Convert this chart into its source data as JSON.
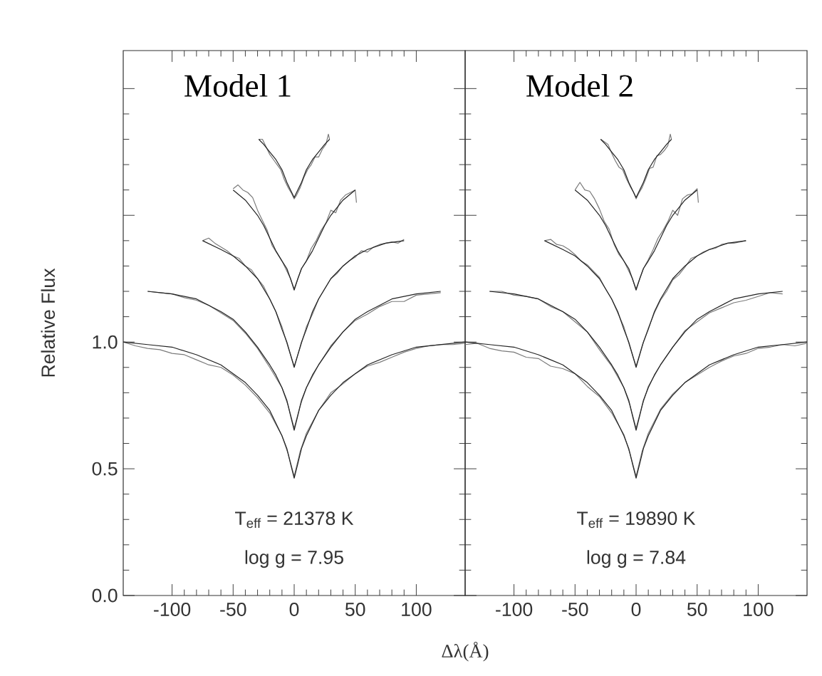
{
  "chart_data": [
    {
      "type": "line",
      "ylabel": "Relative Flux",
      "xlabel": "Δλ(Å)",
      "xlim": [
        -140,
        140
      ],
      "ylim": [
        0,
        2.15
      ],
      "xticks": [
        -100,
        -50,
        0,
        50,
        100
      ],
      "yticks": [
        {
          "value": 0,
          "label": "0.0"
        },
        0.5,
        {
          "value": 1,
          "label": "1.0"
        },
        {
          "value": 1.5,
          "label": null
        },
        {
          "value": 2,
          "label": null
        }
      ],
      "annotations": [
        "Model 1",
        "T$_{eff}$ = 21378 K",
        "log g = 7.95"
      ],
      "series": [
        {
          "color": "#7a7a7a",
          "x": [
            -140,
            -130,
            -120,
            -110,
            -100,
            -90,
            -80,
            -70,
            -60,
            -50,
            -40,
            -30,
            -20,
            -10,
            -5,
            0,
            5,
            10,
            20,
            30,
            40,
            50,
            60,
            70,
            80,
            90,
            100,
            110,
            120,
            130,
            140
          ],
          "values": [
            1.0,
            0.985,
            0.975,
            0.97,
            0.955,
            0.95,
            0.93,
            0.91,
            0.9,
            0.87,
            0.83,
            0.78,
            0.72,
            0.63,
            0.56,
            0.47,
            0.57,
            0.64,
            0.73,
            0.8,
            0.835,
            0.875,
            0.905,
            0.92,
            0.94,
            0.96,
            0.975,
            0.985,
            0.99,
            0.99,
            0.995
          ]
        },
        {
          "color": "#7a7a7a",
          "x": [
            -120,
            -110,
            -100,
            -90,
            -80,
            -70,
            -60,
            -50,
            -40,
            -30,
            -20,
            -10,
            -5,
            0,
            5,
            10,
            20,
            30,
            40,
            50,
            60,
            70,
            80,
            90,
            100,
            110,
            120
          ],
          "values": [
            1.2,
            1.195,
            1.19,
            1.175,
            1.165,
            1.145,
            1.115,
            1.085,
            1.035,
            0.975,
            0.9,
            0.82,
            0.75,
            0.66,
            0.75,
            0.82,
            0.91,
            0.985,
            1.04,
            1.085,
            1.11,
            1.14,
            1.16,
            1.16,
            1.185,
            1.19,
            1.195
          ]
        },
        {
          "color": "#7a7a7a",
          "x": [
            -75,
            -70,
            -65,
            -60,
            -55,
            -50,
            -45,
            -40,
            -35,
            -30,
            -25,
            -20,
            -15,
            -10,
            -5,
            0,
            5,
            10,
            15,
            20,
            25,
            30,
            35,
            40,
            45,
            50,
            55,
            60,
            65,
            70,
            75,
            80,
            85,
            90
          ],
          "values": [
            1.4,
            1.41,
            1.39,
            1.375,
            1.36,
            1.34,
            1.33,
            1.3,
            1.285,
            1.25,
            1.22,
            1.17,
            1.12,
            1.06,
            0.98,
            0.905,
            0.98,
            1.06,
            1.11,
            1.17,
            1.21,
            1.25,
            1.27,
            1.3,
            1.32,
            1.335,
            1.36,
            1.355,
            1.375,
            1.385,
            1.39,
            1.395,
            1.39,
            1.405
          ]
        },
        {
          "color": "#7a7a7a",
          "x": [
            -50,
            -46,
            -42,
            -38,
            -34,
            -30,
            -26,
            -22,
            -18,
            -14,
            -10,
            -6,
            -3,
            0,
            3,
            6,
            10,
            14,
            18,
            22,
            26,
            30,
            34,
            38,
            42,
            46,
            50,
            51
          ],
          "values": [
            1.605,
            1.62,
            1.6,
            1.59,
            1.57,
            1.52,
            1.48,
            1.44,
            1.38,
            1.35,
            1.32,
            1.28,
            1.25,
            1.21,
            1.25,
            1.29,
            1.32,
            1.37,
            1.4,
            1.44,
            1.47,
            1.52,
            1.51,
            1.56,
            1.58,
            1.59,
            1.6,
            1.55
          ]
        },
        {
          "color": "#7a7a7a",
          "x": [
            -29,
            -26,
            -23,
            -20,
            -17,
            -14,
            -11,
            -8,
            -5,
            -2,
            0,
            2,
            5,
            8,
            11,
            14,
            17,
            20,
            23,
            26,
            28,
            29
          ],
          "values": [
            1.8,
            1.8,
            1.77,
            1.74,
            1.72,
            1.7,
            1.68,
            1.64,
            1.61,
            1.585,
            1.565,
            1.58,
            1.61,
            1.65,
            1.68,
            1.7,
            1.73,
            1.73,
            1.76,
            1.78,
            1.82,
            1.8
          ]
        },
        {
          "color": "#222222",
          "x": [
            -140,
            -120,
            -100,
            -80,
            -60,
            -40,
            -30,
            -20,
            -15,
            -10,
            -6,
            -3,
            0,
            3,
            6,
            10,
            15,
            20,
            30,
            40,
            60,
            80,
            100,
            120,
            140
          ],
          "values": [
            1.0,
            0.99,
            0.98,
            0.95,
            0.91,
            0.84,
            0.79,
            0.73,
            0.68,
            0.63,
            0.58,
            0.52,
            0.463,
            0.52,
            0.58,
            0.63,
            0.68,
            0.73,
            0.79,
            0.84,
            0.91,
            0.95,
            0.98,
            0.99,
            1.0
          ]
        },
        {
          "color": "#222222",
          "x": [
            -120,
            -100,
            -80,
            -60,
            -50,
            -40,
            -30,
            -20,
            -15,
            -10,
            -6,
            -3,
            0,
            3,
            6,
            10,
            15,
            20,
            30,
            40,
            50,
            60,
            80,
            100,
            120
          ],
          "values": [
            1.2,
            1.19,
            1.17,
            1.12,
            1.09,
            1.04,
            0.98,
            0.91,
            0.87,
            0.82,
            0.77,
            0.71,
            0.652,
            0.71,
            0.77,
            0.82,
            0.87,
            0.91,
            0.98,
            1.04,
            1.09,
            1.12,
            1.17,
            1.19,
            1.2
          ]
        },
        {
          "color": "#222222",
          "x": [
            -75,
            -60,
            -50,
            -40,
            -30,
            -20,
            -15,
            -10,
            -6,
            -3,
            0,
            3,
            6,
            10,
            15,
            20,
            30,
            40,
            50,
            60,
            75,
            90
          ],
          "values": [
            1.4,
            1.365,
            1.34,
            1.3,
            1.25,
            1.17,
            1.12,
            1.05,
            1.0,
            0.95,
            0.9,
            0.95,
            1.0,
            1.05,
            1.12,
            1.17,
            1.25,
            1.3,
            1.34,
            1.365,
            1.39,
            1.4
          ]
        },
        {
          "color": "#222222",
          "x": [
            -50,
            -40,
            -30,
            -25,
            -20,
            -15,
            -10,
            -6,
            -3,
            0,
            3,
            6,
            10,
            15,
            20,
            25,
            30,
            40,
            50
          ],
          "values": [
            1.6,
            1.56,
            1.5,
            1.46,
            1.41,
            1.36,
            1.32,
            1.29,
            1.25,
            1.205,
            1.25,
            1.29,
            1.32,
            1.36,
            1.41,
            1.46,
            1.5,
            1.56,
            1.6
          ]
        },
        {
          "color": "#222222",
          "x": [
            -29,
            -25,
            -20,
            -15,
            -10,
            -6,
            -3,
            0,
            3,
            6,
            10,
            15,
            20,
            25,
            29
          ],
          "values": [
            1.8,
            1.78,
            1.75,
            1.72,
            1.68,
            1.63,
            1.6,
            1.57,
            1.6,
            1.63,
            1.68,
            1.72,
            1.75,
            1.78,
            1.8
          ]
        }
      ]
    },
    {
      "type": "line",
      "xlim": [
        -140,
        140
      ],
      "ylim": [
        0,
        2.15
      ],
      "xticks": [
        -100,
        -50,
        0,
        50,
        100
      ],
      "yticks": [
        0,
        0.5,
        1,
        1.5,
        2
      ],
      "tick_labels": "x",
      "annotations": [
        "Model 2",
        "T$_{eff}$ = 19890 K",
        "log g = 7.84"
      ],
      "series": [
        {
          "color": "#7a7a7a",
          "x": [
            -140,
            -130,
            -120,
            -110,
            -100,
            -90,
            -80,
            -70,
            -60,
            -50,
            -40,
            -30,
            -20,
            -10,
            -5,
            0,
            5,
            10,
            20,
            30,
            40,
            50,
            60,
            70,
            80,
            90,
            100,
            110,
            120,
            130,
            140
          ],
          "values": [
            0.99,
            0.995,
            0.975,
            0.965,
            0.96,
            0.94,
            0.935,
            0.905,
            0.895,
            0.875,
            0.825,
            0.785,
            0.72,
            0.635,
            0.56,
            0.47,
            0.57,
            0.64,
            0.735,
            0.795,
            0.84,
            0.87,
            0.9,
            0.925,
            0.945,
            0.955,
            0.975,
            0.98,
            0.99,
            0.985,
            0.995
          ]
        },
        {
          "color": "#7a7a7a",
          "x": [
            -120,
            -110,
            -100,
            -90,
            -80,
            -70,
            -60,
            -50,
            -40,
            -30,
            -20,
            -10,
            -5,
            0,
            5,
            10,
            20,
            30,
            40,
            50,
            60,
            70,
            80,
            90,
            100,
            110,
            120
          ],
          "values": [
            1.2,
            1.2,
            1.185,
            1.18,
            1.17,
            1.14,
            1.12,
            1.08,
            1.04,
            0.97,
            0.905,
            0.82,
            0.75,
            0.66,
            0.75,
            0.825,
            0.91,
            0.98,
            1.045,
            1.08,
            1.115,
            1.135,
            1.155,
            1.165,
            1.18,
            1.195,
            1.19
          ]
        },
        {
          "color": "#7a7a7a",
          "x": [
            -75,
            -70,
            -65,
            -60,
            -55,
            -50,
            -45,
            -40,
            -35,
            -30,
            -25,
            -20,
            -15,
            -10,
            -5,
            0,
            5,
            10,
            15,
            20,
            25,
            30,
            35,
            40,
            45,
            50,
            55,
            60,
            65,
            70,
            75,
            80,
            85,
            90
          ],
          "values": [
            1.4,
            1.405,
            1.385,
            1.38,
            1.365,
            1.345,
            1.32,
            1.305,
            1.28,
            1.255,
            1.21,
            1.17,
            1.115,
            1.06,
            0.98,
            0.905,
            0.985,
            1.055,
            1.115,
            1.165,
            1.2,
            1.245,
            1.265,
            1.295,
            1.33,
            1.34,
            1.355,
            1.365,
            1.37,
            1.385,
            1.39,
            1.39,
            1.395,
            1.4
          ]
        },
        {
          "color": "#7a7a7a",
          "x": [
            -50,
            -46,
            -42,
            -38,
            -34,
            -30,
            -26,
            -22,
            -18,
            -14,
            -10,
            -6,
            -3,
            0,
            3,
            6,
            10,
            14,
            18,
            22,
            26,
            30,
            34,
            38,
            42,
            46,
            50,
            51
          ],
          "values": [
            1.6,
            1.63,
            1.6,
            1.595,
            1.565,
            1.525,
            1.475,
            1.445,
            1.385,
            1.345,
            1.32,
            1.28,
            1.25,
            1.21,
            1.25,
            1.29,
            1.325,
            1.365,
            1.41,
            1.44,
            1.475,
            1.52,
            1.5,
            1.565,
            1.58,
            1.585,
            1.605,
            1.55
          ]
        },
        {
          "color": "#7a7a7a",
          "x": [
            -29,
            -26,
            -23,
            -20,
            -17,
            -14,
            -11,
            -8,
            -5,
            -2,
            0,
            2,
            5,
            8,
            11,
            14,
            17,
            20,
            23,
            26,
            28,
            29
          ],
          "values": [
            1.8,
            1.79,
            1.78,
            1.745,
            1.715,
            1.69,
            1.68,
            1.645,
            1.615,
            1.59,
            1.565,
            1.585,
            1.61,
            1.645,
            1.685,
            1.69,
            1.735,
            1.74,
            1.755,
            1.775,
            1.82,
            1.8
          ]
        },
        {
          "color": "#222222",
          "x": [
            -140,
            -120,
            -100,
            -80,
            -60,
            -40,
            -30,
            -20,
            -15,
            -10,
            -6,
            -3,
            0,
            3,
            6,
            10,
            15,
            20,
            30,
            40,
            60,
            80,
            100,
            120,
            140
          ],
          "values": [
            1.0,
            0.99,
            0.98,
            0.95,
            0.91,
            0.84,
            0.79,
            0.73,
            0.68,
            0.63,
            0.58,
            0.52,
            0.463,
            0.52,
            0.58,
            0.63,
            0.68,
            0.73,
            0.79,
            0.84,
            0.91,
            0.95,
            0.98,
            0.99,
            1.0
          ]
        },
        {
          "color": "#222222",
          "x": [
            -120,
            -100,
            -80,
            -60,
            -50,
            -40,
            -30,
            -20,
            -15,
            -10,
            -6,
            -3,
            0,
            3,
            6,
            10,
            15,
            20,
            30,
            40,
            50,
            60,
            80,
            100,
            120
          ],
          "values": [
            1.2,
            1.19,
            1.17,
            1.12,
            1.09,
            1.04,
            0.98,
            0.91,
            0.87,
            0.82,
            0.77,
            0.71,
            0.652,
            0.71,
            0.77,
            0.82,
            0.87,
            0.91,
            0.98,
            1.04,
            1.09,
            1.12,
            1.17,
            1.19,
            1.2
          ]
        },
        {
          "color": "#222222",
          "x": [
            -75,
            -60,
            -50,
            -40,
            -30,
            -20,
            -15,
            -10,
            -6,
            -3,
            0,
            3,
            6,
            10,
            15,
            20,
            30,
            40,
            50,
            60,
            75,
            90
          ],
          "values": [
            1.4,
            1.365,
            1.34,
            1.3,
            1.25,
            1.17,
            1.12,
            1.05,
            1.0,
            0.95,
            0.9,
            0.95,
            1.0,
            1.05,
            1.12,
            1.17,
            1.25,
            1.3,
            1.34,
            1.365,
            1.39,
            1.4
          ]
        },
        {
          "color": "#222222",
          "x": [
            -50,
            -40,
            -30,
            -25,
            -20,
            -15,
            -10,
            -6,
            -3,
            0,
            3,
            6,
            10,
            15,
            20,
            25,
            30,
            40,
            50
          ],
          "values": [
            1.6,
            1.56,
            1.5,
            1.46,
            1.41,
            1.36,
            1.32,
            1.29,
            1.25,
            1.205,
            1.25,
            1.29,
            1.32,
            1.36,
            1.41,
            1.46,
            1.5,
            1.56,
            1.6
          ]
        },
        {
          "color": "#222222",
          "x": [
            -29,
            -25,
            -20,
            -15,
            -10,
            -6,
            -3,
            0,
            3,
            6,
            10,
            15,
            20,
            25,
            29
          ],
          "values": [
            1.8,
            1.78,
            1.75,
            1.72,
            1.68,
            1.63,
            1.6,
            1.57,
            1.6,
            1.63,
            1.68,
            1.72,
            1.75,
            1.78,
            1.8
          ]
        }
      ]
    }
  ]
}
